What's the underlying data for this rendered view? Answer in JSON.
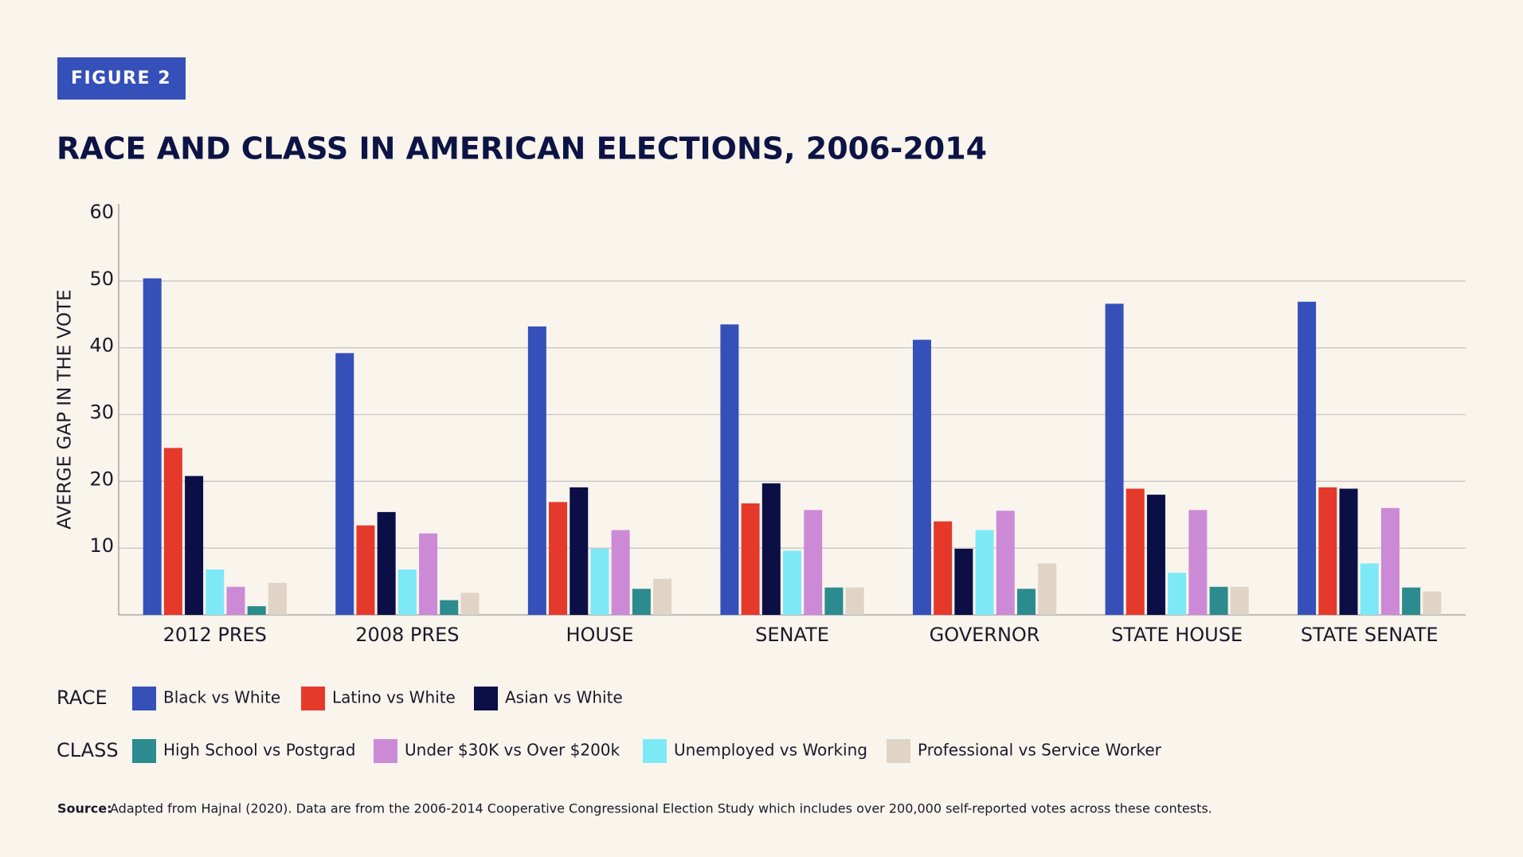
{
  "figure_label": "FIGURE 2",
  "chart_data": {
    "type": "bar",
    "title": "RACE AND CLASS IN AMERICAN ELECTIONS, 2006-2014",
    "y_label": "AVERGE GAP IN THE VOTE",
    "categories": [
      "2012 PRES",
      "2008 PRES",
      "HOUSE",
      "SENATE",
      "GOVERNOR",
      "STATE HOUSE",
      "STATE SENATE"
    ],
    "series": [
      {
        "name": "Black vs White",
        "color": "#3550b8",
        "values": [
          50.4,
          39.2,
          43.2,
          43.5,
          41.2,
          46.6,
          46.9
        ]
      },
      {
        "name": "Latino vs White",
        "color": "#e5392c",
        "values": [
          25.0,
          13.4,
          16.9,
          16.7,
          14.0,
          18.9,
          19.1
        ]
      },
      {
        "name": "Asian vs White",
        "color": "#0b0f45",
        "values": [
          20.8,
          15.4,
          19.1,
          19.7,
          9.9,
          18.0,
          18.9
        ]
      },
      {
        "name": "Unemployed vs Working",
        "color": "#7de9f6",
        "values": [
          6.8,
          6.8,
          9.9,
          9.6,
          12.7,
          6.3,
          7.7
        ]
      },
      {
        "name": "Under $30K vs Over $200k",
        "color": "#cc8ad6",
        "values": [
          4.2,
          12.2,
          12.7,
          15.7,
          15.6,
          15.7,
          16.0
        ]
      },
      {
        "name": "High School vs Postgrad",
        "color": "#2c8b8e",
        "values": [
          1.3,
          2.2,
          3.9,
          4.1,
          3.9,
          4.2,
          4.1
        ]
      },
      {
        "name": "Professional vs Service Worker",
        "color": "#dfd4c5",
        "values": [
          4.8,
          3.3,
          5.4,
          4.1,
          7.7,
          4.2,
          3.5
        ]
      }
    ],
    "legend_groups": [
      "RACE",
      "CLASS"
    ],
    "ylim": [
      0,
      60
    ],
    "yticks": [
      10,
      20,
      30,
      40,
      50,
      60
    ],
    "grid": true
  },
  "source_label": "Source:",
  "source": "Adapted from Hajnal (2020). Data are from the 2006-2014 Cooperative Congressional Election Study which includes over 200,000 self-reported votes across these contests."
}
